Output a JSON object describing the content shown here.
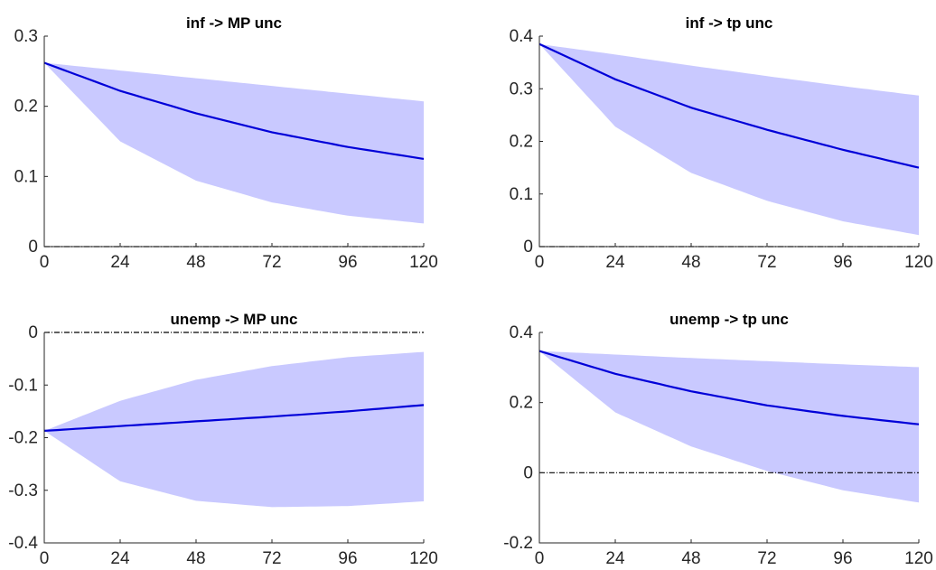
{
  "chart_data": [
    {
      "type": "area",
      "title": "inf -> MP unc",
      "x": [
        0,
        24,
        48,
        72,
        96,
        120
      ],
      "xticks": [
        "0",
        "24",
        "48",
        "72",
        "96",
        "120"
      ],
      "xlim": [
        0,
        120
      ],
      "ylim": [
        0,
        0.3
      ],
      "yticks": [
        "0",
        "0.1",
        "0.2",
        "0.3"
      ],
      "zero_line": true,
      "series": [
        {
          "role": "median",
          "values": [
            0.262,
            0.222,
            0.19,
            0.163,
            0.142,
            0.125
          ]
        },
        {
          "role": "upper",
          "values": [
            0.262,
            0.251,
            0.24,
            0.229,
            0.218,
            0.207
          ]
        },
        {
          "role": "lower",
          "values": [
            0.262,
            0.15,
            0.094,
            0.063,
            0.044,
            0.033
          ]
        }
      ]
    },
    {
      "type": "area",
      "title": "inf -> tp unc",
      "x": [
        0,
        24,
        48,
        72,
        96,
        120
      ],
      "xticks": [
        "0",
        "24",
        "48",
        "72",
        "96",
        "120"
      ],
      "xlim": [
        0,
        120
      ],
      "ylim": [
        0,
        0.4
      ],
      "yticks": [
        "0",
        "0.1",
        "0.2",
        "0.3",
        "0.4"
      ],
      "zero_line": true,
      "series": [
        {
          "role": "median",
          "values": [
            0.385,
            0.318,
            0.264,
            0.222,
            0.184,
            0.15
          ]
        },
        {
          "role": "upper",
          "values": [
            0.385,
            0.365,
            0.344,
            0.324,
            0.305,
            0.287
          ]
        },
        {
          "role": "lower",
          "values": [
            0.385,
            0.228,
            0.14,
            0.087,
            0.048,
            0.022
          ]
        }
      ]
    },
    {
      "type": "area",
      "title": "unemp -> MP unc",
      "x": [
        0,
        24,
        48,
        72,
        96,
        120
      ],
      "xticks": [
        "0",
        "24",
        "48",
        "72",
        "96",
        "120"
      ],
      "xlim": [
        0,
        120
      ],
      "ylim": [
        -0.4,
        0
      ],
      "yticks": [
        "-0.4",
        "-0.3",
        "-0.2",
        "-0.1",
        "0"
      ],
      "zero_line": true,
      "series": [
        {
          "role": "median",
          "values": [
            -0.187,
            -0.178,
            -0.169,
            -0.16,
            -0.15,
            -0.138
          ]
        },
        {
          "role": "upper",
          "values": [
            -0.187,
            -0.13,
            -0.09,
            -0.064,
            -0.047,
            -0.037
          ]
        },
        {
          "role": "lower",
          "values": [
            -0.187,
            -0.283,
            -0.32,
            -0.332,
            -0.33,
            -0.321
          ]
        }
      ]
    },
    {
      "type": "area",
      "title": "unemp -> tp unc",
      "x": [
        0,
        24,
        48,
        72,
        96,
        120
      ],
      "xticks": [
        "0",
        "24",
        "48",
        "72",
        "96",
        "120"
      ],
      "xlim": [
        0,
        120
      ],
      "ylim": [
        -0.2,
        0.4
      ],
      "yticks": [
        "-0.2",
        "0",
        "0.2",
        "0.4"
      ],
      "zero_line": true,
      "series": [
        {
          "role": "median",
          "values": [
            0.347,
            0.282,
            0.232,
            0.192,
            0.162,
            0.138
          ]
        },
        {
          "role": "upper",
          "values": [
            0.347,
            0.337,
            0.327,
            0.318,
            0.309,
            0.301
          ]
        },
        {
          "role": "lower",
          "values": [
            0.347,
            0.172,
            0.075,
            0.005,
            -0.05,
            -0.085
          ]
        }
      ]
    }
  ],
  "colors": {
    "band": "#c9c9ff",
    "line": "#0000d8",
    "zero_line": "#000000"
  }
}
